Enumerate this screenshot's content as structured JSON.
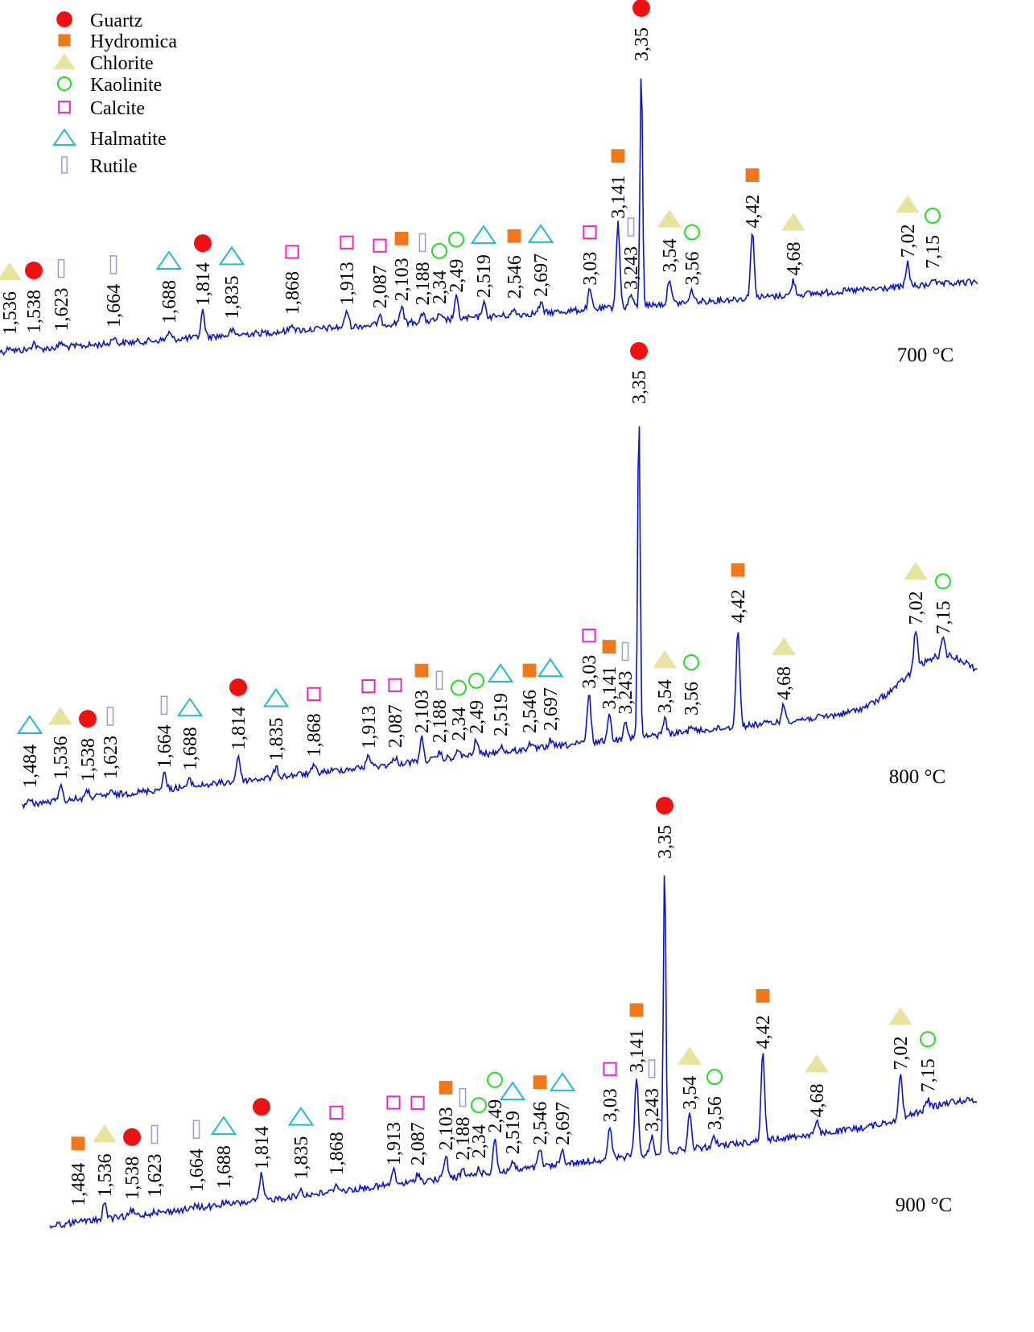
{
  "colors": {
    "trace": "#0a14c8",
    "Guartz": "#ee1111",
    "Hydromica": "#f07818",
    "Chlorite": "#e8e4a0",
    "Kaolinite": "#22dd22",
    "Calcite": "#ee22cc",
    "Halmatite": "#22bbcc",
    "Rutile": "#9a9ad6"
  },
  "legend": [
    {
      "name": "Guartz",
      "shape": "filled-circle"
    },
    {
      "name": "Hydromica",
      "shape": "filled-square"
    },
    {
      "name": "Chlorite",
      "shape": "filled-triangle"
    },
    {
      "name": "Kaolinite",
      "shape": "open-circle"
    },
    {
      "name": "Calcite",
      "shape": "open-square"
    },
    {
      "name": "Halmatite",
      "shape": "open-triangle"
    },
    {
      "name": "Rutile",
      "shape": "open-rectangle"
    }
  ],
  "chart_data": {
    "type": "line",
    "title": "",
    "xlabel": "",
    "ylabel": "",
    "x_unit": "d-spacing",
    "legend_position": "top-left",
    "panels": [
      {
        "temperature": "700 °C",
        "peaks": [
          {
            "d": "1,536",
            "mineral": "Chlorite",
            "intensity": 0.02
          },
          {
            "d": "1,538",
            "mineral": "Guartz",
            "intensity": 0.03
          },
          {
            "d": "1,623",
            "mineral": "Rutile",
            "intensity": 0.02
          },
          {
            "d": "1,664",
            "mineral": "Rutile",
            "intensity": 0.03
          },
          {
            "d": "1,688",
            "mineral": "Halmatite",
            "intensity": 0.03
          },
          {
            "d": "1,814",
            "mineral": "Guartz",
            "intensity": 0.11
          },
          {
            "d": "1,835",
            "mineral": "Halmatite",
            "intensity": 0.02
          },
          {
            "d": "1,868",
            "mineral": "Calcite",
            "intensity": 0.03
          },
          {
            "d": "1,913",
            "mineral": "Calcite",
            "intensity": 0.07
          },
          {
            "d": "2,087",
            "mineral": "Calcite",
            "intensity": 0.03
          },
          {
            "d": "2,103",
            "mineral": "Hydromica",
            "intensity": 0.07
          },
          {
            "d": "2,188",
            "mineral": "Rutile",
            "intensity": 0.03
          },
          {
            "d": "2,34",
            "mineral": "Kaolinite",
            "intensity": 0.02
          },
          {
            "d": "2,49",
            "mineral": "Kaolinite",
            "intensity": 0.09
          },
          {
            "d": "2,519",
            "mineral": "Halmatite",
            "intensity": 0.06
          },
          {
            "d": "2,546",
            "mineral": "Hydromica",
            "intensity": 0.02
          },
          {
            "d": "2,697",
            "mineral": "Halmatite",
            "intensity": 0.04
          },
          {
            "d": "3,03",
            "mineral": "Calcite",
            "intensity": 0.08
          },
          {
            "d": "3,141",
            "mineral": "Hydromica",
            "intensity": 0.35
          },
          {
            "d": "3,243",
            "mineral": "Rutile",
            "intensity": 0.05
          },
          {
            "d": "3,35",
            "mineral": "Guartz",
            "intensity": 1.0
          },
          {
            "d": "3,54",
            "mineral": "Chlorite",
            "intensity": 0.11
          },
          {
            "d": "3,56",
            "mineral": "Kaolinite",
            "intensity": 0.05
          },
          {
            "d": "4,42",
            "mineral": "Hydromica",
            "intensity": 0.27
          },
          {
            "d": "4,68",
            "mineral": "Chlorite",
            "intensity": 0.06
          },
          {
            "d": "7,02",
            "mineral": "Chlorite",
            "intensity": 0.1
          },
          {
            "d": "7,15",
            "mineral": "Kaolinite",
            "intensity": 0.03
          }
        ]
      },
      {
        "temperature": "800 °C",
        "peaks": [
          {
            "d": "1,484",
            "mineral": "Halmatite",
            "intensity": 0.01
          },
          {
            "d": "1,536",
            "mineral": "Chlorite",
            "intensity": 0.05
          },
          {
            "d": "1,538",
            "mineral": "Guartz",
            "intensity": 0.02
          },
          {
            "d": "1,623",
            "mineral": "Rutile",
            "intensity": 0.01
          },
          {
            "d": "1,664",
            "mineral": "Rutile",
            "intensity": 0.05
          },
          {
            "d": "1,688",
            "mineral": "Halmatite",
            "intensity": 0.02
          },
          {
            "d": "1,814",
            "mineral": "Guartz",
            "intensity": 0.08
          },
          {
            "d": "1,835",
            "mineral": "Halmatite",
            "intensity": 0.03
          },
          {
            "d": "1,868",
            "mineral": "Calcite",
            "intensity": 0.02
          },
          {
            "d": "1,913",
            "mineral": "Calcite",
            "intensity": 0.04
          },
          {
            "d": "2,087",
            "mineral": "Calcite",
            "intensity": 0.02
          },
          {
            "d": "2,103",
            "mineral": "Hydromica",
            "intensity": 0.07
          },
          {
            "d": "2,188",
            "mineral": "Rutile",
            "intensity": 0.02
          },
          {
            "d": "2,34",
            "mineral": "Kaolinite",
            "intensity": 0.02
          },
          {
            "d": "2,49",
            "mineral": "Kaolinite",
            "intensity": 0.05
          },
          {
            "d": "2,519",
            "mineral": "Halmatite",
            "intensity": 0.02
          },
          {
            "d": "2,546",
            "mineral": "Hydromica",
            "intensity": 0.02
          },
          {
            "d": "2,697",
            "mineral": "Halmatite",
            "intensity": 0.02
          },
          {
            "d": "3,03",
            "mineral": "Calcite",
            "intensity": 0.15
          },
          {
            "d": "3,141",
            "mineral": "Hydromica",
            "intensity": 0.08
          },
          {
            "d": "3,243",
            "mineral": "Rutile",
            "intensity": 0.06
          },
          {
            "d": "3,35",
            "mineral": "Guartz",
            "intensity": 1.0
          },
          {
            "d": "3,54",
            "mineral": "Chlorite",
            "intensity": 0.05
          },
          {
            "d": "3,56",
            "mineral": "Kaolinite",
            "intensity": 0.02
          },
          {
            "d": "4,42",
            "mineral": "Hydromica",
            "intensity": 0.3
          },
          {
            "d": "4,68",
            "mineral": "Chlorite",
            "intensity": 0.05
          },
          {
            "d": "7,02",
            "mineral": "Chlorite",
            "intensity": 0.12
          },
          {
            "d": "7,15",
            "mineral": "Kaolinite",
            "intensity": 0.05
          }
        ]
      },
      {
        "temperature": "900 °C",
        "peaks": [
          {
            "d": "1,484",
            "mineral": "Hydromica",
            "intensity": 0.01
          },
          {
            "d": "1,536",
            "mineral": "Chlorite",
            "intensity": 0.06
          },
          {
            "d": "1,538",
            "mineral": "Guartz",
            "intensity": 0.02
          },
          {
            "d": "1,623",
            "mineral": "Rutile",
            "intensity": 0.01
          },
          {
            "d": "1,664",
            "mineral": "Rutile",
            "intensity": 0.01
          },
          {
            "d": "1,688",
            "mineral": "Halmatite",
            "intensity": 0.01
          },
          {
            "d": "1,814",
            "mineral": "Guartz",
            "intensity": 0.09
          },
          {
            "d": "1,835",
            "mineral": "Halmatite",
            "intensity": 0.02
          },
          {
            "d": "1,868",
            "mineral": "Calcite",
            "intensity": 0.03
          },
          {
            "d": "1,913",
            "mineral": "Calcite",
            "intensity": 0.05
          },
          {
            "d": "2,087",
            "mineral": "Calcite",
            "intensity": 0.03
          },
          {
            "d": "2,103",
            "mineral": "Hydromica",
            "intensity": 0.08
          },
          {
            "d": "2,188",
            "mineral": "Rutile",
            "intensity": 0.02
          },
          {
            "d": "2,34",
            "mineral": "Kaolinite",
            "intensity": 0.02
          },
          {
            "d": "2,49",
            "mineral": "Kaolinite",
            "intensity": 0.12
          },
          {
            "d": "2,519",
            "mineral": "Halmatite",
            "intensity": 0.03
          },
          {
            "d": "2,546",
            "mineral": "Hydromica",
            "intensity": 0.06
          },
          {
            "d": "2,697",
            "mineral": "Halmatite",
            "intensity": 0.05
          },
          {
            "d": "3,03",
            "mineral": "Calcite",
            "intensity": 0.11
          },
          {
            "d": "3,141",
            "mineral": "Hydromica",
            "intensity": 0.27
          },
          {
            "d": "3,243",
            "mineral": "Rutile",
            "intensity": 0.06
          },
          {
            "d": "3,35",
            "mineral": "Guartz",
            "intensity": 1.0
          },
          {
            "d": "3,54",
            "mineral": "Chlorite",
            "intensity": 0.12
          },
          {
            "d": "3,56",
            "mineral": "Kaolinite",
            "intensity": 0.03
          },
          {
            "d": "4,42",
            "mineral": "Hydromica",
            "intensity": 0.3
          },
          {
            "d": "4,68",
            "mineral": "Chlorite",
            "intensity": 0.04
          },
          {
            "d": "7,02",
            "mineral": "Chlorite",
            "intensity": 0.15
          },
          {
            "d": "7,15",
            "mineral": "Kaolinite",
            "intensity": 0.03
          }
        ]
      }
    ]
  }
}
